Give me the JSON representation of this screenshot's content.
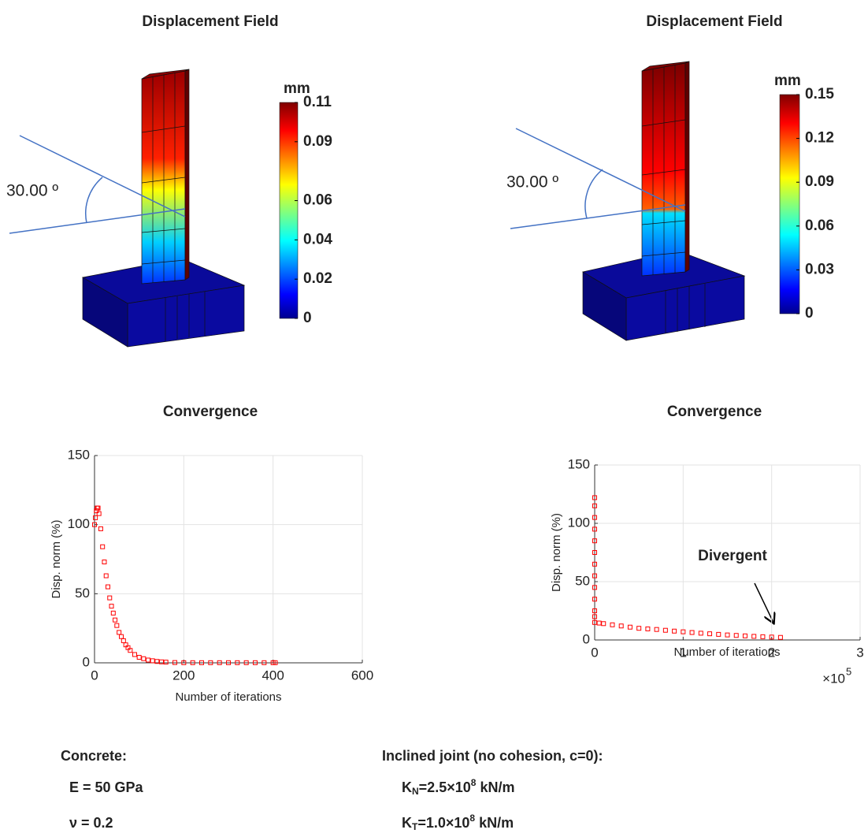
{
  "displacement_panels": [
    {
      "title": "Displacement Field",
      "angle_label": "30.00 º",
      "colorbar": {
        "unit": "mm",
        "lim": [
          0,
          0.11
        ],
        "ticks": [
          0,
          0.02,
          0.04,
          0.06,
          0.09,
          0.11
        ]
      }
    },
    {
      "title": "Displacement Field",
      "angle_label": "30.00 º",
      "colorbar": {
        "unit": "mm",
        "lim": [
          0,
          0.15
        ],
        "ticks": [
          0,
          0.03,
          0.06,
          0.09,
          0.12,
          0.15
        ]
      }
    }
  ],
  "chart_data": [
    {
      "type": "scatter",
      "title": "Convergence",
      "x_label": "Number of iterations",
      "y_label": "Disp. norm (%)",
      "xlim": [
        0,
        600
      ],
      "xticks": [
        0,
        200,
        400,
        600
      ],
      "ylim": [
        0,
        150
      ],
      "yticks": [
        0,
        50,
        100,
        150
      ],
      "grid": true,
      "series": [
        {
          "color": "#ff0000",
          "x": [
            0,
            2,
            4,
            6,
            8,
            10,
            14,
            18,
            22,
            26,
            30,
            34,
            38,
            42,
            46,
            50,
            55,
            60,
            65,
            70,
            75,
            80,
            90,
            100,
            110,
            120,
            130,
            140,
            150,
            160,
            180,
            200,
            220,
            240,
            260,
            280,
            300,
            320,
            340,
            360,
            380,
            400,
            405
          ],
          "values": [
            100,
            105,
            110,
            112,
            112,
            108,
            97,
            84,
            73,
            63,
            55,
            47,
            41,
            36,
            31,
            27,
            22,
            19,
            16,
            13,
            11,
            9,
            6,
            4,
            3,
            2,
            1.5,
            1,
            0.7,
            0.5,
            0.2,
            0.1,
            0.1,
            0.1,
            0.1,
            0.1,
            0.1,
            0.1,
            0.1,
            0.1,
            0.1,
            0.1,
            0.1
          ]
        }
      ]
    },
    {
      "type": "scatter",
      "title": "Convergence",
      "x_label": "Number of iterations",
      "y_label": "Disp. norm (%)",
      "xlim": [
        0,
        300000
      ],
      "xticks": [
        {
          "value": 0,
          "label": "0"
        },
        {
          "value": 100000,
          "label": "1"
        },
        {
          "value": 200000,
          "label": "2"
        },
        {
          "value": 300000,
          "label": "3"
        }
      ],
      "x_exponent": {
        "base": "×10",
        "power": "5"
      },
      "ylim": [
        0,
        150
      ],
      "yticks": [
        0,
        50,
        100,
        150
      ],
      "grid": true,
      "annotation": "Divergent",
      "series": [
        {
          "color": "#ff0000",
          "x": [
            0,
            0,
            0,
            0,
            0,
            0,
            0,
            0,
            0,
            0,
            0,
            0,
            0,
            5000,
            10000,
            20000,
            30000,
            40000,
            50000,
            60000,
            70000,
            80000,
            90000,
            100000,
            110000,
            120000,
            130000,
            140000,
            150000,
            160000,
            170000,
            180000,
            190000,
            200000,
            210000
          ],
          "values": [
            122,
            115,
            105,
            95,
            85,
            75,
            65,
            55,
            45,
            35,
            25,
            20,
            15,
            14.5,
            14,
            13,
            12,
            11,
            10,
            9.5,
            9,
            8.3,
            7.6,
            7,
            6.4,
            5.8,
            5.3,
            4.8,
            4.3,
            3.9,
            3.5,
            3.1,
            2.8,
            2.5,
            2.2
          ]
        }
      ]
    }
  ],
  "materials": {
    "concrete": {
      "heading": "Concrete:",
      "modulus": "E = 50 GPa",
      "poisson": "ν = 0.2"
    },
    "joint": {
      "heading": "Inclined joint (no cohesion, c=0):",
      "normal": {
        "base": "K",
        "sub": "N",
        "value": "=2.5×10",
        "exp": "8",
        "unit": " kN/m"
      },
      "tangential": {
        "base": "K",
        "sub": "T",
        "value": "=1.0×10",
        "exp": "8",
        "unit": " kN/m"
      }
    }
  }
}
